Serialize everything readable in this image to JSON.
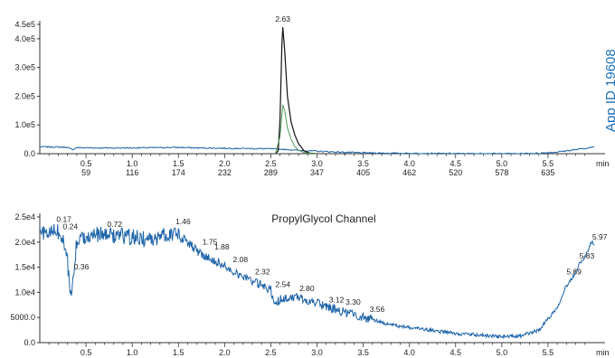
{
  "app_id": "App ID 19608",
  "chart_data": [
    {
      "type": "line",
      "title": "",
      "xlabel": "min",
      "ylabel": "",
      "xlim": [
        0,
        6.0
      ],
      "ylim": [
        0,
        450000
      ],
      "y_ticks": [
        "0.0",
        "1.0e5",
        "2.0e5",
        "3.0e5",
        "4.0e5",
        "4.5e5"
      ],
      "y_tick_values": [
        0,
        100000,
        200000,
        300000,
        400000,
        450000
      ],
      "x_ticks": [
        "0.5",
        "1.0",
        "1.5",
        "2.0",
        "2.5",
        "3.0",
        "3.5",
        "4.0",
        "4.5",
        "5.0",
        "5.5"
      ],
      "x_tick_values": [
        0.5,
        1.0,
        1.5,
        2.0,
        2.5,
        3.0,
        3.5,
        4.0,
        4.5,
        5.0,
        5.5
      ],
      "scan_ticks": [
        "59",
        "116",
        "174",
        "232",
        "289",
        "347",
        "405",
        "462",
        "520",
        "578",
        "635"
      ],
      "peak_labels": [
        {
          "x": 2.63,
          "y": 450000,
          "label": "2.63"
        }
      ],
      "series": [
        {
          "color": "#1a62a8",
          "x": [
            0,
            0.2,
            0.3,
            0.35,
            0.4,
            0.6,
            1.0,
            1.5,
            1.7,
            2.0,
            2.5,
            2.58,
            2.9,
            3.2,
            3.5,
            4.0,
            4.5,
            5.0,
            5.2,
            5.4,
            5.6,
            5.8,
            6.0
          ],
          "y": [
            24000,
            23000,
            22000,
            14000,
            21000,
            20000,
            20000,
            22000,
            20000,
            19000,
            17000,
            16000,
            10000,
            6000,
            3000,
            1000,
            300,
            0,
            0,
            1500,
            6000,
            14000,
            23000
          ]
        },
        {
          "color": "#111111",
          "x": [
            2.55,
            2.58,
            2.6,
            2.62,
            2.63,
            2.65,
            2.68,
            2.72,
            2.76,
            2.8,
            2.86,
            2.92,
            3.0
          ],
          "y": [
            0,
            10000,
            120000,
            380000,
            440000,
            360000,
            200000,
            110000,
            65000,
            35000,
            10000,
            2000,
            0
          ]
        },
        {
          "color": "#4d9a55",
          "x": [
            2.55,
            2.6,
            2.63,
            2.65,
            2.68,
            2.72,
            2.76,
            2.8,
            2.86,
            2.92,
            3.0
          ],
          "y": [
            0,
            60000,
            170000,
            150000,
            90000,
            50000,
            25000,
            12000,
            4000,
            1000,
            0
          ]
        }
      ]
    },
    {
      "type": "line",
      "title": "PropylGlycol Channel",
      "xlabel": "min",
      "ylabel": "",
      "xlim": [
        0,
        6.0
      ],
      "ylim": [
        0,
        25000
      ],
      "y_ticks": [
        "0.0",
        "5000.0",
        "1.0e4",
        "1.5e4",
        "2.0e4",
        "2.5e4"
      ],
      "y_tick_values": [
        0,
        5000,
        10000,
        15000,
        20000,
        25000
      ],
      "x_ticks": [
        "0.5",
        "1.0",
        "1.5",
        "2.0",
        "2.5",
        "3.0",
        "3.5",
        "4.0",
        "4.5",
        "5.0",
        "5.5"
      ],
      "x_tick_values": [
        0.5,
        1.0,
        1.5,
        2.0,
        2.5,
        3.0,
        3.5,
        4.0,
        4.5,
        5.0,
        5.5
      ],
      "peak_labels": [
        {
          "x": 0.17,
          "y": 23500,
          "label": "0.17"
        },
        {
          "x": 0.24,
          "y": 22000,
          "label": "0.24"
        },
        {
          "x": 0.36,
          "y": 14000,
          "label": "0.36"
        },
        {
          "x": 0.72,
          "y": 22500,
          "label": "0.72"
        },
        {
          "x": 1.46,
          "y": 23000,
          "label": "1.46"
        },
        {
          "x": 1.75,
          "y": 19000,
          "label": "1.75"
        },
        {
          "x": 1.88,
          "y": 18000,
          "label": "1.88"
        },
        {
          "x": 2.08,
          "y": 15500,
          "label": "2.08"
        },
        {
          "x": 2.32,
          "y": 13000,
          "label": "2.32"
        },
        {
          "x": 2.54,
          "y": 10500,
          "label": "2.54"
        },
        {
          "x": 2.8,
          "y": 9700,
          "label": "2.80"
        },
        {
          "x": 3.12,
          "y": 7500,
          "label": "3.12"
        },
        {
          "x": 3.3,
          "y": 7000,
          "label": "3.30"
        },
        {
          "x": 3.56,
          "y": 5600,
          "label": "3.56"
        },
        {
          "x": 5.69,
          "y": 13000,
          "label": "5.69"
        },
        {
          "x": 5.83,
          "y": 16200,
          "label": "5.83"
        },
        {
          "x": 5.97,
          "y": 20000,
          "label": "5.97"
        }
      ],
      "series": [
        {
          "color": "#1a62a8",
          "x": [
            0,
            0.1,
            0.17,
            0.24,
            0.3,
            0.33,
            0.36,
            0.4,
            0.5,
            0.72,
            1.0,
            1.2,
            1.46,
            1.6,
            1.75,
            1.88,
            2.08,
            2.32,
            2.5,
            2.54,
            2.6,
            2.7,
            2.8,
            3.0,
            3.12,
            3.3,
            3.56,
            3.8,
            4.0,
            4.5,
            5.0,
            5.2,
            5.4,
            5.6,
            5.69,
            5.8,
            5.83,
            5.9,
            5.97,
            6.0
          ],
          "y": [
            22000,
            21500,
            22500,
            21000,
            16000,
            9000,
            12500,
            20000,
            21500,
            21500,
            21000,
            20500,
            22000,
            20000,
            17500,
            16500,
            14500,
            12000,
            10500,
            8000,
            8500,
            9000,
            9000,
            7800,
            7000,
            6000,
            4800,
            3500,
            3000,
            1800,
            1200,
            1300,
            2500,
            7000,
            11000,
            14000,
            15500,
            17000,
            20000,
            19500
          ]
        }
      ]
    }
  ]
}
